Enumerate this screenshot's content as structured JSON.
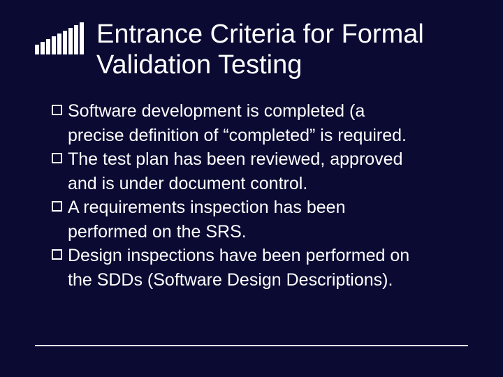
{
  "slide": {
    "title": "Entrance Criteria for Formal Validation Testing",
    "title_fontsize": 38,
    "title_color": "#ffffff",
    "background_color": "#0a0a33",
    "body_fontsize": 25,
    "body_color": "#ffffff",
    "decorative_bars": {
      "count": 9,
      "color": "#ffffff",
      "heights": [
        14,
        18,
        22,
        26,
        30,
        34,
        38,
        42,
        46
      ],
      "width": 6,
      "gap": 2
    },
    "bullets": [
      {
        "lead": "Software development is completed (a",
        "cont": [
          "precise definition of “completed” is required."
        ]
      },
      {
        "lead": "The test plan has been reviewed, approved",
        "cont": [
          "and is under document control."
        ]
      },
      {
        "lead": "A requirements inspection has been",
        "cont": [
          "performed on the SRS."
        ]
      },
      {
        "lead": "Design inspections have been performed on",
        "cont": [
          "the SDDs (Software Design Descriptions)."
        ]
      }
    ],
    "footer_line_color": "#ffffff"
  }
}
